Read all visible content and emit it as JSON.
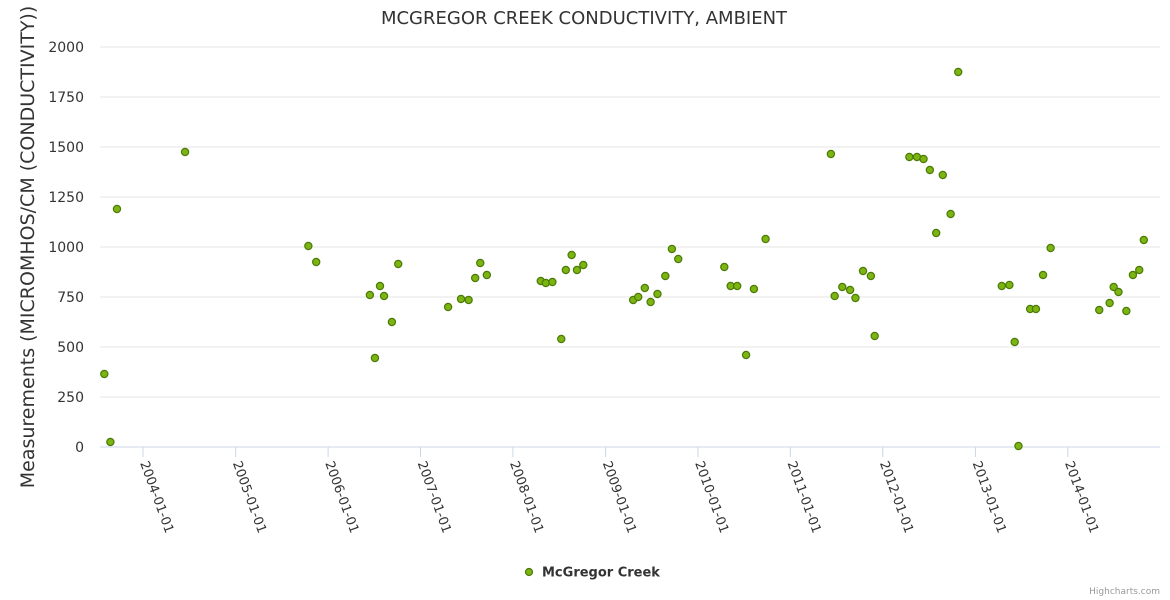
{
  "chart_data": {
    "type": "scatter",
    "title": "MCGREGOR CREEK CONDUCTIVITY, AMBIENT",
    "ylabel": "Measurements (MICROMHOS/CM (CONDUCTIVITY))",
    "xlabel": "",
    "ylim": [
      0,
      2000
    ],
    "yticks": [
      0,
      250,
      500,
      750,
      1000,
      1250,
      1500,
      1750,
      2000
    ],
    "xlim": [
      "2003-07-15",
      "2014-12-31"
    ],
    "xticks": [
      "2004-01-01",
      "2005-01-01",
      "2006-01-01",
      "2007-01-01",
      "2008-01-01",
      "2009-01-01",
      "2010-01-01",
      "2011-01-01",
      "2012-01-01",
      "2013-01-01",
      "2014-01-01"
    ],
    "grid": "horizontal",
    "legend_position": "bottom-center",
    "colors": {
      "marker_fill": "#7cb511",
      "marker_stroke": "#4b7a08",
      "grid": "#e6e6e6",
      "axis": "#ccd6eb"
    },
    "series": [
      {
        "name": "McGregor Creek",
        "points": [
          [
            "2003-08-01",
            365
          ],
          [
            "2003-08-25",
            25
          ],
          [
            "2003-09-20",
            1190
          ],
          [
            "2004-06-15",
            1475
          ],
          [
            "2005-10-15",
            1005
          ],
          [
            "2005-11-15",
            925
          ],
          [
            "2006-06-15",
            760
          ],
          [
            "2006-07-05",
            445
          ],
          [
            "2006-07-25",
            805
          ],
          [
            "2006-08-10",
            755
          ],
          [
            "2006-09-10",
            625
          ],
          [
            "2006-10-05",
            915
          ],
          [
            "2007-04-20",
            700
          ],
          [
            "2007-06-10",
            740
          ],
          [
            "2007-07-10",
            735
          ],
          [
            "2007-08-05",
            845
          ],
          [
            "2007-08-25",
            920
          ],
          [
            "2007-09-20",
            860
          ],
          [
            "2008-04-20",
            830
          ],
          [
            "2008-05-10",
            820
          ],
          [
            "2008-06-05",
            825
          ],
          [
            "2008-07-10",
            540
          ],
          [
            "2008-07-28",
            885
          ],
          [
            "2008-08-20",
            960
          ],
          [
            "2008-09-10",
            885
          ],
          [
            "2008-10-05",
            910
          ],
          [
            "2009-04-20",
            735
          ],
          [
            "2009-05-10",
            750
          ],
          [
            "2009-06-05",
            795
          ],
          [
            "2009-06-28",
            725
          ],
          [
            "2009-07-25",
            765
          ],
          [
            "2009-08-25",
            855
          ],
          [
            "2009-09-20",
            990
          ],
          [
            "2009-10-15",
            940
          ],
          [
            "2010-04-15",
            900
          ],
          [
            "2010-05-10",
            805
          ],
          [
            "2010-06-05",
            805
          ],
          [
            "2010-07-10",
            460
          ],
          [
            "2010-08-10",
            790
          ],
          [
            "2010-09-25",
            1040
          ],
          [
            "2011-06-10",
            1465
          ],
          [
            "2011-06-25",
            755
          ],
          [
            "2011-07-25",
            800
          ],
          [
            "2011-08-25",
            785
          ],
          [
            "2011-09-15",
            745
          ],
          [
            "2011-10-15",
            880
          ],
          [
            "2011-11-15",
            855
          ],
          [
            "2011-11-30",
            555
          ],
          [
            "2012-04-15",
            1450
          ],
          [
            "2012-05-15",
            1450
          ],
          [
            "2012-06-10",
            1440
          ],
          [
            "2012-07-05",
            1385
          ],
          [
            "2012-07-30",
            1070
          ],
          [
            "2012-08-25",
            1360
          ],
          [
            "2012-09-25",
            1165
          ],
          [
            "2012-10-25",
            1875
          ],
          [
            "2013-04-15",
            805
          ],
          [
            "2013-05-15",
            810
          ],
          [
            "2013-06-05",
            525
          ],
          [
            "2013-06-20",
            5
          ],
          [
            "2013-08-05",
            690
          ],
          [
            "2013-08-28",
            690
          ],
          [
            "2013-09-25",
            860
          ],
          [
            "2013-10-25",
            995
          ],
          [
            "2014-05-05",
            685
          ],
          [
            "2014-06-15",
            720
          ],
          [
            "2014-07-01",
            800
          ],
          [
            "2014-07-20",
            775
          ],
          [
            "2014-08-20",
            680
          ],
          [
            "2014-09-15",
            860
          ],
          [
            "2014-10-10",
            885
          ],
          [
            "2014-10-28",
            1035
          ]
        ]
      }
    ]
  },
  "credits": "Highcharts.com"
}
